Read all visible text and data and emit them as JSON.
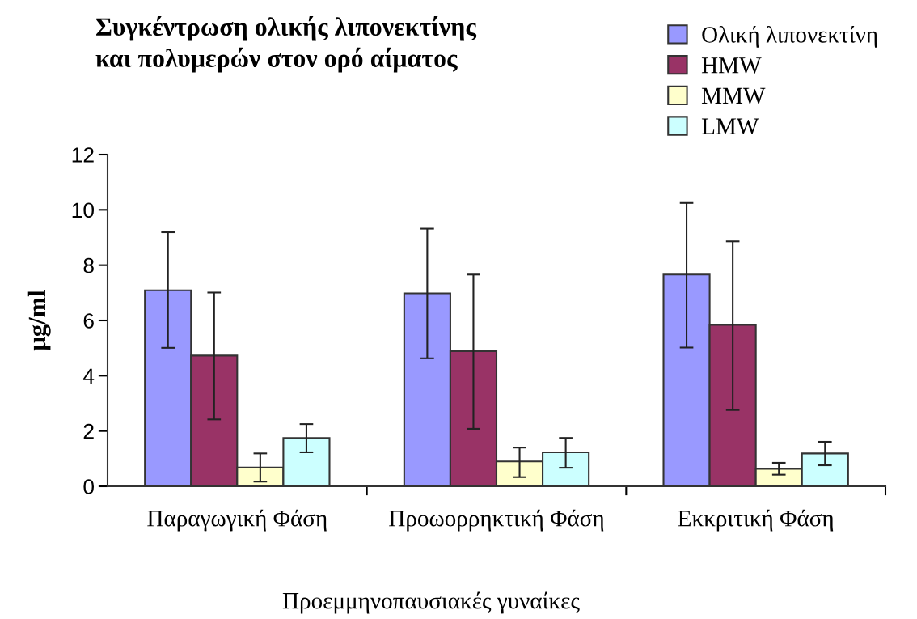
{
  "chart_data": {
    "type": "bar",
    "title": "Συγκέντρωση ολικής λιπονεκτίνης\nκαι πολυμερών στον ορό αίματος",
    "xlabel": "Προεμμηνοπαυσιακές γυναίκες",
    "ylabel": "μg/ml",
    "categories": [
      "Παραγωγική Φάση",
      "Προωορρηκτική Φάση",
      "Εκκριτική Φάση"
    ],
    "series": [
      {
        "name": "Ολική λιπονεκτίνη",
        "color": "#9999ff",
        "values": [
          7.09,
          6.98,
          7.66
        ],
        "errors": [
          [
            5.01,
            9.19
          ],
          [
            4.63,
            9.32
          ],
          [
            5.02,
            10.25
          ]
        ]
      },
      {
        "name": "HMW",
        "color": "#993366",
        "values": [
          4.73,
          4.89,
          5.84
        ],
        "errors": [
          [
            2.42,
            7.01
          ],
          [
            2.08,
            7.66
          ],
          [
            2.76,
            8.86
          ]
        ]
      },
      {
        "name": "MMW",
        "color": "#ffffcc",
        "values": [
          0.68,
          0.9,
          0.63
        ],
        "errors": [
          [
            0.17,
            1.19
          ],
          [
            0.33,
            1.4
          ],
          [
            0.42,
            0.85
          ]
        ]
      },
      {
        "name": "LMW",
        "color": "#ccffff",
        "values": [
          1.75,
          1.23,
          1.19
        ],
        "errors": [
          [
            1.23,
            2.25
          ],
          [
            0.67,
            1.75
          ],
          [
            0.76,
            1.61
          ]
        ]
      }
    ],
    "ylim": [
      0,
      12
    ],
    "yticks": [
      0,
      2,
      4,
      6,
      8,
      10,
      12
    ],
    "grid": false,
    "legend": "top right"
  }
}
